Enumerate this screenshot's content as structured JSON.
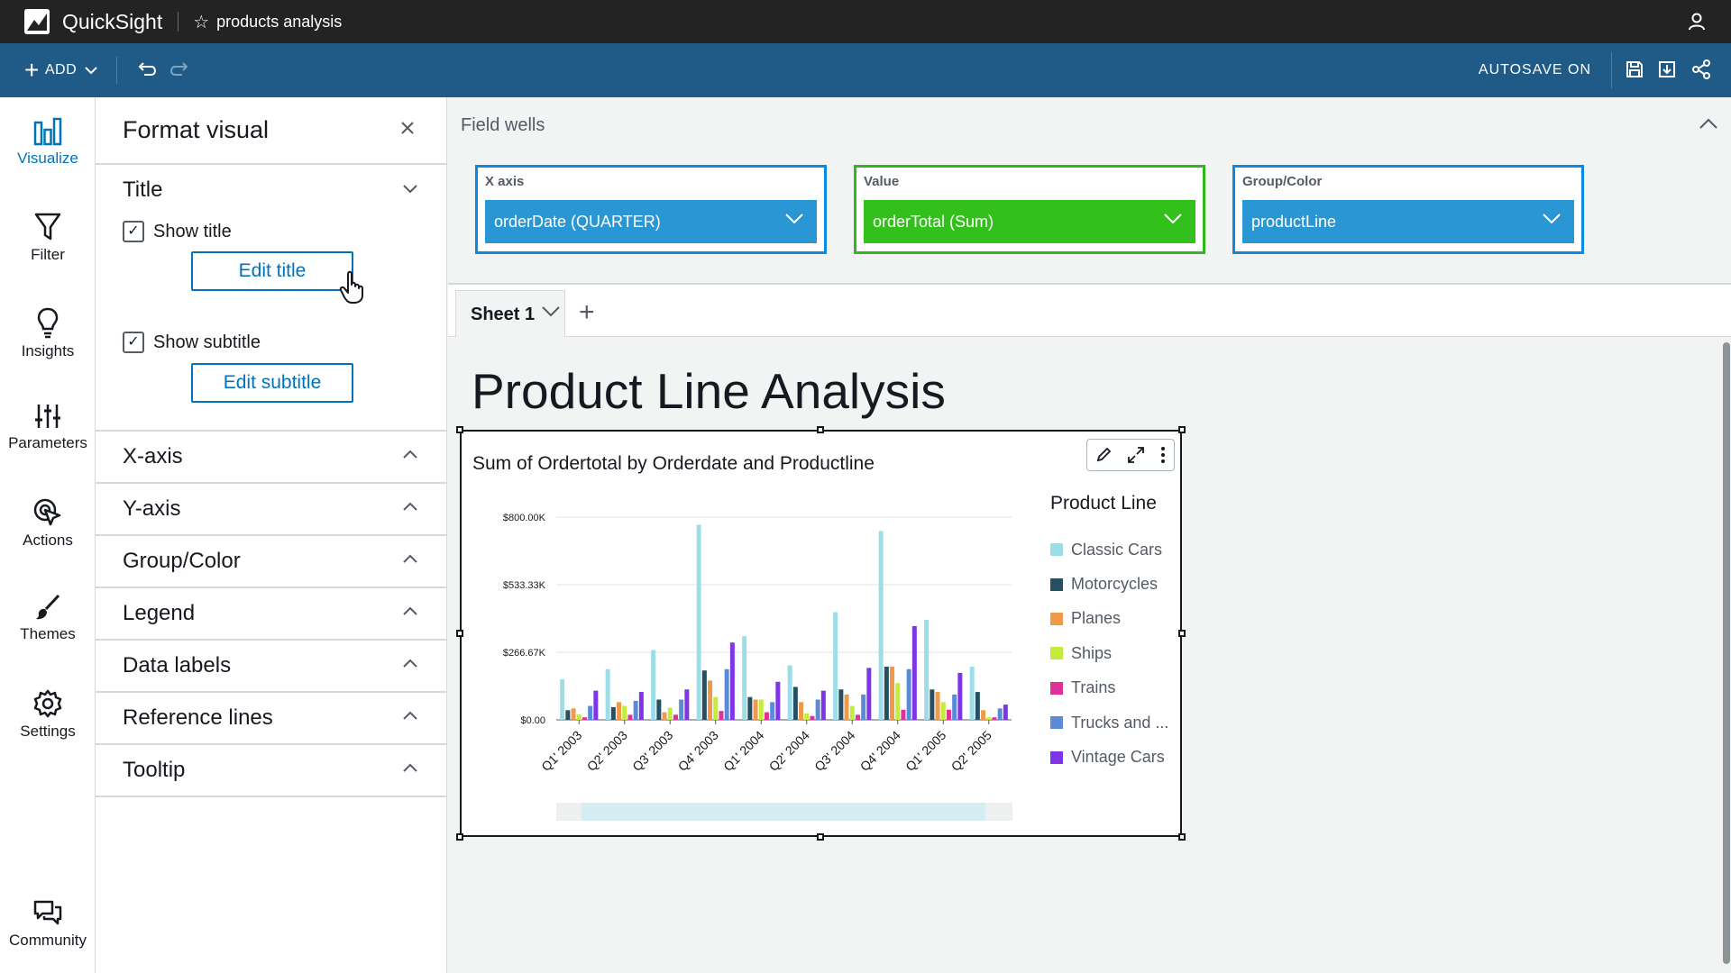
{
  "app": {
    "name": "QuickSight",
    "analysis_name": "products analysis"
  },
  "toolbar": {
    "add_label": "ADD",
    "autosave_label": "AUTOSAVE ON"
  },
  "nav": {
    "items": [
      {
        "label": "Visualize",
        "icon": "bar-chart-icon",
        "active": true
      },
      {
        "label": "Filter",
        "icon": "filter-icon",
        "active": false
      },
      {
        "label": "Insights",
        "icon": "lightbulb-icon",
        "active": false
      },
      {
        "label": "Parameters",
        "icon": "sliders-icon",
        "active": false
      },
      {
        "label": "Actions",
        "icon": "pointer-click-icon",
        "active": false
      },
      {
        "label": "Themes",
        "icon": "brush-icon",
        "active": false
      },
      {
        "label": "Settings",
        "icon": "gear-icon",
        "active": false
      }
    ],
    "community_label": "Community"
  },
  "format_panel": {
    "title": "Format visual",
    "title_section": {
      "label": "Title",
      "show_title_label": "Show title",
      "show_title_checked": true,
      "edit_title_label": "Edit title",
      "show_subtitle_label": "Show subtitle",
      "show_subtitle_checked": true,
      "edit_subtitle_label": "Edit subtitle"
    },
    "sections": [
      "X-axis",
      "Y-axis",
      "Group/Color",
      "Legend",
      "Data labels",
      "Reference lines",
      "Tooltip"
    ]
  },
  "field_wells": {
    "title": "Field wells",
    "wells": [
      {
        "label": "X axis",
        "field": "orderDate (QUARTER)",
        "color": "#2a97d4"
      },
      {
        "label": "Value",
        "field": "orderTotal (Sum)",
        "color": "#34c01c"
      },
      {
        "label": "Group/Color",
        "field": "productLine",
        "color": "#2a97d4"
      }
    ]
  },
  "sheet": {
    "tab_label": "Sheet 1",
    "title": "Product Line Analysis"
  },
  "chart_data": {
    "type": "bar",
    "title": "Sum of Ordertotal by Orderdate and Productline",
    "xlabel": "",
    "ylabel": "",
    "ylim": [
      0,
      800000
    ],
    "yticks": [
      "$0.00",
      "$266.67K",
      "$533.33K",
      "$800.00K"
    ],
    "ytick_values": [
      0,
      266670,
      533330,
      800000
    ],
    "categories": [
      "Q1' 2003",
      "Q2' 2003",
      "Q3' 2003",
      "Q4' 2003",
      "Q1' 2004",
      "Q2' 2004",
      "Q3' 2004",
      "Q4' 2004",
      "Q1' 2005",
      "Q2' 2005"
    ],
    "legend_title": "Product Line",
    "legend_position": "right",
    "grid": true,
    "series": [
      {
        "name": "Classic Cars",
        "color": "#9ddde8",
        "values": [
          160000,
          200000,
          275000,
          770000,
          330000,
          215000,
          425000,
          745000,
          395000,
          210000
        ]
      },
      {
        "name": "Motorcycles",
        "color": "#264f63",
        "values": [
          38000,
          50000,
          80000,
          195000,
          90000,
          130000,
          120000,
          210000,
          120000,
          110000
        ]
      },
      {
        "name": "Planes",
        "color": "#ef9a4b",
        "values": [
          45000,
          70000,
          30000,
          155000,
          80000,
          70000,
          100000,
          210000,
          110000,
          38000
        ]
      },
      {
        "name": "Ships",
        "color": "#c4ec3c",
        "values": [
          22000,
          55000,
          48000,
          90000,
          80000,
          25000,
          55000,
          145000,
          70000,
          10000
        ]
      },
      {
        "name": "Trains",
        "color": "#e0309b",
        "values": [
          10000,
          20000,
          20000,
          35000,
          30000,
          15000,
          20000,
          40000,
          40000,
          10000
        ]
      },
      {
        "name": "Trucks and ...",
        "color": "#5b8ad8",
        "values": [
          55000,
          75000,
          80000,
          200000,
          70000,
          80000,
          100000,
          200000,
          100000,
          45000
        ]
      },
      {
        "name": "Vintage Cars",
        "color": "#7d35e6",
        "values": [
          115000,
          110000,
          120000,
          305000,
          150000,
          115000,
          205000,
          370000,
          185000,
          60000
        ]
      }
    ]
  }
}
